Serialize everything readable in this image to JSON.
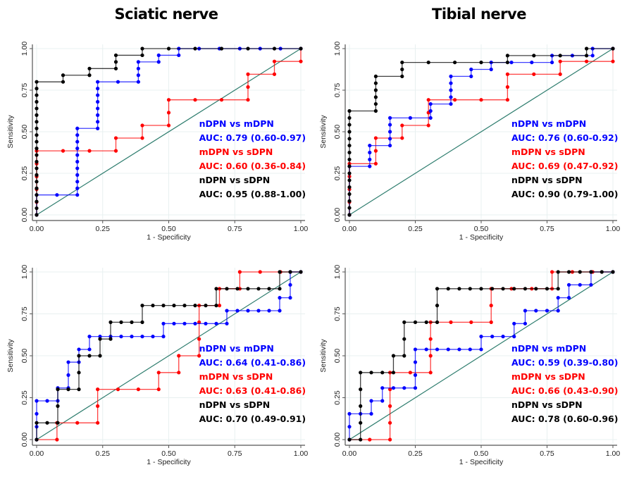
{
  "column_titles": [
    "Sciatic nerve",
    "Tibial nerve"
  ],
  "colors": {
    "nDPN_vs_mDPN": "#0000ff",
    "mDPN_vs_sDPN": "#ff0000",
    "nDPN_vs_sDPN": "#000000",
    "reference": "#2e7d6e",
    "grid": "#e8f0f0"
  },
  "chart_data": [
    {
      "type": "line",
      "panel": "top-left",
      "title": "Sciatic nerve",
      "xlabel": "1 - Specificity",
      "ylabel": "Sensitivity",
      "xlim": [
        0,
        1
      ],
      "ylim": [
        0,
        1
      ],
      "xticks": [
        "0.00",
        "0.25",
        "0.50",
        "0.75",
        "1.00"
      ],
      "yticks": [
        "0.00",
        "0.25",
        "0.50",
        "0.75",
        "1.00"
      ],
      "grid": true,
      "legend_placement": "bottom-right",
      "series": [
        {
          "name": "nDPN vs mDPN",
          "auc_label": "AUC: 0.79 (0.60-0.97)",
          "color_key": "nDPN_vs_mDPN",
          "x": [
            0,
            0,
            0.077,
            0.154,
            0.154,
            0.154,
            0.154,
            0.154,
            0.154,
            0.154,
            0.154,
            0.154,
            0.154,
            0.154,
            0.231,
            0.231,
            0.231,
            0.231,
            0.231,
            0.231,
            0.231,
            0.231,
            0.308,
            0.385,
            0.385,
            0.385,
            0.385,
            0.462,
            0.462,
            0.538,
            0.538,
            0.615,
            0.692,
            0.769,
            0.846,
            0.923,
            1
          ],
          "y": [
            0,
            0.12,
            0.12,
            0.12,
            0.16,
            0.2,
            0.24,
            0.28,
            0.32,
            0.36,
            0.4,
            0.44,
            0.48,
            0.52,
            0.52,
            0.56,
            0.6,
            0.64,
            0.68,
            0.72,
            0.76,
            0.8,
            0.8,
            0.8,
            0.84,
            0.88,
            0.92,
            0.92,
            0.96,
            0.96,
            1,
            1,
            1,
            1,
            1,
            1,
            1
          ]
        },
        {
          "name": "mDPN vs sDPN",
          "auc_label": "AUC: 0.60 (0.36-0.84)",
          "color_key": "mDPN_vs_sDPN",
          "x": [
            0,
            0,
            0,
            0,
            0,
            0,
            0.1,
            0.2,
            0.3,
            0.3,
            0.4,
            0.4,
            0.5,
            0.5,
            0.5,
            0.6,
            0.7,
            0.8,
            0.8,
            0.8,
            0.9,
            0.9,
            1,
            1
          ],
          "y": [
            0,
            0.077,
            0.154,
            0.231,
            0.308,
            0.385,
            0.385,
            0.385,
            0.385,
            0.462,
            0.462,
            0.538,
            0.538,
            0.615,
            0.692,
            0.692,
            0.692,
            0.692,
            0.769,
            0.846,
            0.846,
            0.923,
            0.923,
            1
          ]
        },
        {
          "name": "nDPN vs sDPN",
          "auc_label": "AUC: 0.95 (0.88-1.00)",
          "color_key": "nDPN_vs_sDPN",
          "x": [
            0,
            0,
            0,
            0,
            0,
            0,
            0,
            0,
            0,
            0,
            0,
            0,
            0,
            0,
            0,
            0,
            0,
            0,
            0,
            0,
            0,
            0.1,
            0.1,
            0.2,
            0.2,
            0.3,
            0.3,
            0.3,
            0.4,
            0.4,
            0.5,
            0.6,
            0.7,
            0.8,
            0.9,
            1
          ],
          "y": [
            0,
            0.04,
            0.08,
            0.12,
            0.16,
            0.2,
            0.24,
            0.28,
            0.32,
            0.36,
            0.4,
            0.44,
            0.48,
            0.52,
            0.56,
            0.6,
            0.64,
            0.68,
            0.72,
            0.76,
            0.8,
            0.8,
            0.84,
            0.84,
            0.88,
            0.88,
            0.92,
            0.96,
            0.96,
            1,
            1,
            1,
            1,
            1,
            1,
            1
          ]
        }
      ]
    },
    {
      "type": "line",
      "panel": "top-right",
      "title": "Tibial nerve",
      "xlabel": "1 - Specificity",
      "ylabel": "Sensitivity",
      "xlim": [
        0,
        1
      ],
      "ylim": [
        0,
        1
      ],
      "xticks": [
        "0.00",
        "0.25",
        "0.50",
        "0.75",
        "1.00"
      ],
      "yticks": [
        "0.00",
        "0.25",
        "0.50",
        "0.75",
        "1.00"
      ],
      "grid": true,
      "legend_placement": "bottom-right",
      "series": [
        {
          "name": "nDPN vs mDPN",
          "auc_label": "AUC: 0.76 (0.60-0.92)",
          "color_key": "nDPN_vs_mDPN",
          "x": [
            0,
            0,
            0.077,
            0.077,
            0.077,
            0.077,
            0.154,
            0.154,
            0.154,
            0.154,
            0.154,
            0.231,
            0.308,
            0.308,
            0.308,
            0.385,
            0.385,
            0.385,
            0.385,
            0.385,
            0.462,
            0.462,
            0.538,
            0.538,
            0.615,
            0.692,
            0.769,
            0.769,
            0.846,
            0.923,
            0.923,
            1
          ],
          "y": [
            0,
            0.292,
            0.292,
            0.333,
            0.375,
            0.417,
            0.417,
            0.458,
            0.5,
            0.542,
            0.583,
            0.583,
            0.583,
            0.625,
            0.667,
            0.667,
            0.708,
            0.75,
            0.792,
            0.833,
            0.833,
            0.875,
            0.875,
            0.917,
            0.917,
            0.917,
            0.917,
            0.958,
            0.958,
            0.958,
            1,
            1
          ]
        },
        {
          "name": "mDPN vs sDPN",
          "auc_label": "AUC: 0.69 (0.47-0.92)",
          "color_key": "mDPN_vs_sDPN",
          "x": [
            0,
            0,
            0,
            0,
            0,
            0.1,
            0.1,
            0.1,
            0.2,
            0.2,
            0.3,
            0.3,
            0.3,
            0.4,
            0.5,
            0.6,
            0.6,
            0.6,
            0.7,
            0.8,
            0.8,
            0.9,
            1,
            1
          ],
          "y": [
            0,
            0.077,
            0.154,
            0.231,
            0.308,
            0.308,
            0.385,
            0.462,
            0.462,
            0.538,
            0.538,
            0.615,
            0.692,
            0.692,
            0.692,
            0.692,
            0.769,
            0.846,
            0.846,
            0.846,
            0.923,
            0.923,
            0.923,
            1
          ]
        },
        {
          "name": "nDPN vs sDPN",
          "auc_label": "AUC: 0.90 (0.79-1.00)",
          "color_key": "nDPN_vs_sDPN",
          "x": [
            0,
            0,
            0,
            0,
            0,
            0,
            0,
            0,
            0,
            0,
            0,
            0,
            0,
            0,
            0,
            0,
            0.1,
            0.1,
            0.1,
            0.1,
            0.1,
            0.1,
            0.2,
            0.2,
            0.2,
            0.3,
            0.4,
            0.5,
            0.6,
            0.6,
            0.7,
            0.8,
            0.9,
            0.9,
            1
          ],
          "y": [
            0,
            0.042,
            0.083,
            0.125,
            0.167,
            0.208,
            0.25,
            0.292,
            0.333,
            0.375,
            0.417,
            0.458,
            0.5,
            0.542,
            0.583,
            0.625,
            0.625,
            0.667,
            0.708,
            0.75,
            0.792,
            0.833,
            0.833,
            0.875,
            0.917,
            0.917,
            0.917,
            0.917,
            0.917,
            0.958,
            0.958,
            0.958,
            0.958,
            1,
            1
          ]
        }
      ]
    },
    {
      "type": "line",
      "panel": "bottom-left",
      "title": "",
      "xlabel": "1 - Specificity",
      "ylabel": "Sensitivity",
      "xlim": [
        0,
        1
      ],
      "ylim": [
        0,
        1
      ],
      "xticks": [
        "0.00",
        "0.25",
        "0.50",
        "0.75",
        "1.00"
      ],
      "yticks": [
        "0.00",
        "0.25",
        "0.50",
        "0.75",
        "1.00"
      ],
      "grid": true,
      "legend_placement": "bottom-right",
      "series": [
        {
          "name": "nDPN vs mDPN",
          "auc_label": "AUC: 0.64 (0.41-0.86)",
          "color_key": "nDPN_vs_mDPN",
          "x": [
            0,
            0,
            0,
            0,
            0.04,
            0.08,
            0.08,
            0.12,
            0.12,
            0.12,
            0.16,
            0.16,
            0.2,
            0.2,
            0.24,
            0.28,
            0.32,
            0.36,
            0.4,
            0.44,
            0.48,
            0.48,
            0.52,
            0.56,
            0.6,
            0.64,
            0.68,
            0.72,
            0.72,
            0.76,
            0.8,
            0.84,
            0.88,
            0.92,
            0.92,
            0.96,
            0.96,
            0.96,
            1
          ],
          "y": [
            0,
            0.077,
            0.154,
            0.231,
            0.231,
            0.231,
            0.308,
            0.308,
            0.385,
            0.462,
            0.462,
            0.538,
            0.538,
            0.615,
            0.615,
            0.615,
            0.615,
            0.615,
            0.615,
            0.615,
            0.615,
            0.692,
            0.692,
            0.692,
            0.692,
            0.692,
            0.692,
            0.692,
            0.769,
            0.769,
            0.769,
            0.769,
            0.769,
            0.769,
            0.846,
            0.846,
            0.923,
            1,
            1
          ]
        },
        {
          "name": "mDPN vs sDPN",
          "auc_label": "AUC: 0.63 (0.41-0.86)",
          "color_key": "mDPN_vs_sDPN",
          "x": [
            0,
            0.077,
            0.077,
            0.154,
            0.231,
            0.231,
            0.231,
            0.308,
            0.385,
            0.462,
            0.462,
            0.538,
            0.538,
            0.615,
            0.615,
            0.615,
            0.615,
            0.692,
            0.692,
            0.769,
            0.769,
            0.846,
            0.923,
            1
          ],
          "y": [
            0,
            0,
            0.1,
            0.1,
            0.1,
            0.2,
            0.3,
            0.3,
            0.3,
            0.3,
            0.4,
            0.4,
            0.5,
            0.5,
            0.6,
            0.7,
            0.8,
            0.8,
            0.9,
            0.9,
            1,
            1,
            1,
            1
          ]
        },
        {
          "name": "nDPN vs sDPN",
          "auc_label": "AUC: 0.70 (0.49-0.91)",
          "color_key": "nDPN_vs_sDPN",
          "x": [
            0,
            0,
            0.04,
            0.08,
            0.08,
            0.08,
            0.12,
            0.16,
            0.16,
            0.16,
            0.2,
            0.24,
            0.24,
            0.28,
            0.28,
            0.32,
            0.36,
            0.4,
            0.4,
            0.44,
            0.48,
            0.52,
            0.56,
            0.6,
            0.64,
            0.68,
            0.68,
            0.72,
            0.76,
            0.8,
            0.84,
            0.88,
            0.92,
            0.92,
            0.96,
            1
          ],
          "y": [
            0,
            0.1,
            0.1,
            0.1,
            0.2,
            0.3,
            0.3,
            0.3,
            0.4,
            0.5,
            0.5,
            0.5,
            0.6,
            0.6,
            0.7,
            0.7,
            0.7,
            0.7,
            0.8,
            0.8,
            0.8,
            0.8,
            0.8,
            0.8,
            0.8,
            0.8,
            0.9,
            0.9,
            0.9,
            0.9,
            0.9,
            0.9,
            0.9,
            1,
            1,
            1
          ]
        }
      ]
    },
    {
      "type": "line",
      "panel": "bottom-right",
      "title": "",
      "xlabel": "1 - Specificity",
      "ylabel": "Sensitivity",
      "xlim": [
        0,
        1
      ],
      "ylim": [
        0,
        1
      ],
      "xticks": [
        "0.00",
        "0.25",
        "0.50",
        "0.75",
        "1.00"
      ],
      "yticks": [
        "0.00",
        "0.25",
        "0.50",
        "0.75",
        "1.00"
      ],
      "grid": true,
      "legend_placement": "bottom-right",
      "series": [
        {
          "name": "nDPN vs mDPN",
          "auc_label": "AUC: 0.59 (0.39-0.80)",
          "color_key": "nDPN_vs_mDPN",
          "x": [
            0,
            0,
            0,
            0.042,
            0.083,
            0.083,
            0.125,
            0.125,
            0.167,
            0.208,
            0.25,
            0.25,
            0.25,
            0.25,
            0.292,
            0.333,
            0.375,
            0.417,
            0.458,
            0.5,
            0.5,
            0.542,
            0.583,
            0.625,
            0.625,
            0.667,
            0.667,
            0.708,
            0.75,
            0.792,
            0.792,
            0.833,
            0.833,
            0.875,
            0.917,
            0.917,
            1
          ],
          "y": [
            0,
            0.077,
            0.154,
            0.154,
            0.154,
            0.231,
            0.231,
            0.308,
            0.308,
            0.308,
            0.308,
            0.385,
            0.462,
            0.538,
            0.538,
            0.538,
            0.538,
            0.538,
            0.538,
            0.538,
            0.615,
            0.615,
            0.615,
            0.615,
            0.692,
            0.692,
            0.769,
            0.769,
            0.769,
            0.769,
            0.846,
            0.846,
            0.923,
            0.923,
            0.923,
            1,
            1
          ]
        },
        {
          "name": "mDPN vs sDPN",
          "auc_label": "AUC: 0.66 (0.43-0.90)",
          "color_key": "mDPN_vs_sDPN",
          "x": [
            0,
            0.077,
            0.154,
            0.154,
            0.154,
            0.154,
            0.154,
            0.231,
            0.308,
            0.308,
            0.308,
            0.308,
            0.385,
            0.462,
            0.538,
            0.538,
            0.538,
            0.615,
            0.692,
            0.769,
            0.769,
            0.846,
            0.923,
            1
          ],
          "y": [
            0,
            0,
            0,
            0.1,
            0.2,
            0.3,
            0.4,
            0.4,
            0.4,
            0.5,
            0.6,
            0.7,
            0.7,
            0.7,
            0.7,
            0.8,
            0.9,
            0.9,
            0.9,
            0.9,
            1,
            1,
            1,
            1
          ]
        },
        {
          "name": "nDPN vs sDPN",
          "auc_label": "AUC: 0.78 (0.60-0.96)",
          "color_key": "nDPN_vs_sDPN",
          "x": [
            0,
            0.042,
            0.042,
            0.042,
            0.042,
            0.042,
            0.083,
            0.125,
            0.167,
            0.167,
            0.208,
            0.208,
            0.208,
            0.25,
            0.292,
            0.333,
            0.333,
            0.333,
            0.375,
            0.417,
            0.458,
            0.5,
            0.542,
            0.583,
            0.625,
            0.667,
            0.708,
            0.75,
            0.792,
            0.792,
            0.833,
            0.875,
            0.917,
            0.958,
            1
          ],
          "y": [
            0,
            0,
            0.1,
            0.2,
            0.3,
            0.4,
            0.4,
            0.4,
            0.4,
            0.5,
            0.5,
            0.6,
            0.7,
            0.7,
            0.7,
            0.7,
            0.8,
            0.9,
            0.9,
            0.9,
            0.9,
            0.9,
            0.9,
            0.9,
            0.9,
            0.9,
            0.9,
            0.9,
            0.9,
            1,
            1,
            1,
            1,
            1,
            1
          ]
        }
      ]
    }
  ]
}
